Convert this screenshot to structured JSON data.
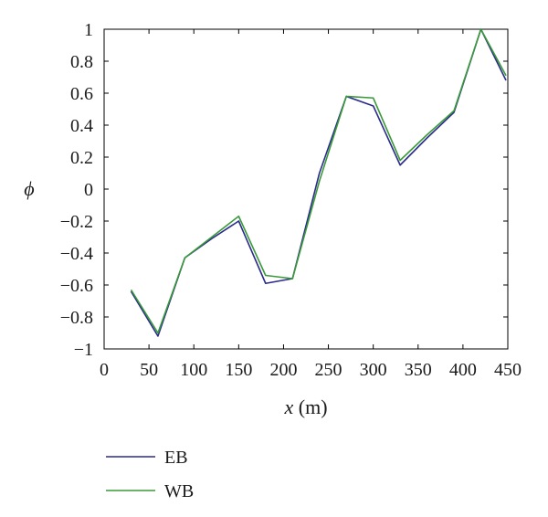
{
  "chart_data": {
    "type": "line",
    "xlabel_var": "x",
    "xlabel_unit": " (m)",
    "ylabel": "ϕ",
    "xlim": [
      0,
      450
    ],
    "ylim": [
      -1,
      1
    ],
    "xticks": [
      0,
      50,
      100,
      150,
      200,
      250,
      300,
      350,
      400,
      450
    ],
    "yticks": [
      1,
      0.8,
      0.6,
      0.4,
      0.2,
      0,
      -0.2,
      -0.4,
      -0.6,
      -0.8,
      -1
    ],
    "ytick_labels": [
      "1",
      "0.8",
      "0.6",
      "0.4",
      "0.2",
      "0",
      "−0.2",
      "−0.4",
      "−0.6",
      "−0.8",
      "−1"
    ],
    "grid": false,
    "legend_position": "below",
    "x": [
      30,
      60,
      90,
      120,
      150,
      180,
      210,
      240,
      270,
      300,
      330,
      360,
      390,
      420,
      448
    ],
    "series": [
      {
        "name": "EB",
        "color": "#2b2b8c",
        "values": [
          -0.64,
          -0.92,
          -0.43,
          -0.31,
          -0.2,
          -0.59,
          -0.56,
          0.1,
          0.58,
          0.52,
          0.15,
          0.32,
          0.48,
          1.0,
          0.68
        ]
      },
      {
        "name": "WB",
        "color": "#3a9a3a",
        "values": [
          -0.63,
          -0.9,
          -0.43,
          -0.3,
          -0.17,
          -0.54,
          -0.56,
          0.05,
          0.58,
          0.57,
          0.18,
          0.34,
          0.49,
          1.0,
          0.71
        ]
      }
    ]
  }
}
